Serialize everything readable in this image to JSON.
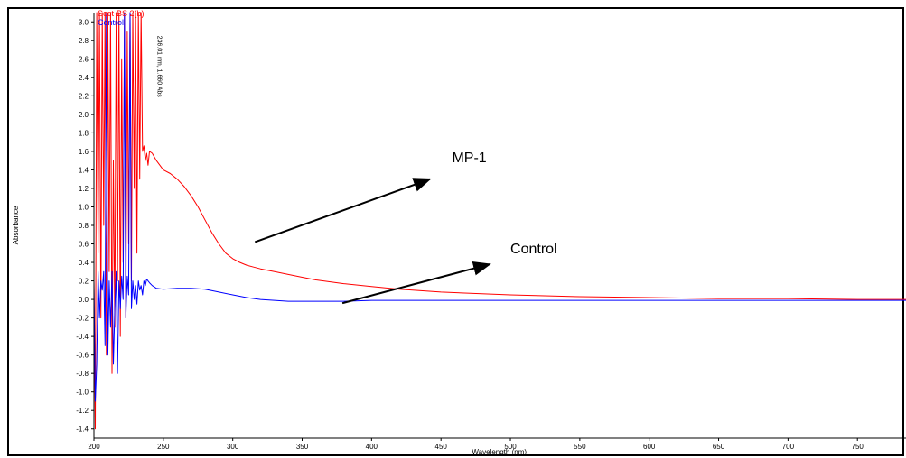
{
  "chart_data": {
    "type": "line",
    "title": "",
    "xlabel": "Wavelength (nm)",
    "ylabel": "Absorbance",
    "xlim": [
      200,
      785
    ],
    "ylim": [
      -1.5,
      3.1
    ],
    "x_ticks": [
      200,
      250,
      300,
      350,
      400,
      450,
      500,
      550,
      600,
      650,
      700,
      750
    ],
    "y_ticks": [
      3.0,
      2.8,
      2.6,
      2.4,
      2.2,
      2.0,
      1.8,
      1.6,
      1.4,
      1.2,
      1.0,
      0.8,
      0.6,
      0.4,
      0.2,
      0.0,
      -0.2,
      -0.4,
      -0.6,
      -0.8,
      -1.0,
      -1.2,
      -1.4
    ],
    "grid": false,
    "legend_position": "top-left",
    "legend": [
      {
        "label": "Sect-BS 2(b)",
        "color": "#ff0000"
      },
      {
        "label": "Control",
        "color": "#0000ff"
      }
    ],
    "peak_label": "236.01 nm, 1.660 Abs",
    "annotations": [
      {
        "text": "MP-1"
      },
      {
        "text": "Control"
      }
    ],
    "series": [
      {
        "name": "Sect-BS 2(b)",
        "color": "#ff0000",
        "x": [
          200,
          201,
          202,
          203,
          204,
          205,
          206,
          207,
          208,
          209,
          210,
          211,
          212,
          213,
          214,
          215,
          216,
          217,
          218,
          219,
          220,
          221,
          222,
          223,
          224,
          225,
          226,
          227,
          228,
          229,
          230,
          231,
          232,
          233,
          234,
          235,
          236,
          237,
          238,
          239,
          240,
          242,
          245,
          250,
          255,
          260,
          265,
          270,
          275,
          280,
          285,
          290,
          295,
          300,
          305,
          310,
          315,
          320,
          330,
          340,
          350,
          360,
          380,
          400,
          420,
          450,
          500,
          550,
          600,
          650,
          700,
          750,
          785
        ],
        "y": [
          0.2,
          -1.4,
          3.1,
          0.5,
          3.1,
          -0.2,
          3.1,
          0.8,
          3.1,
          -0.6,
          3.1,
          0.3,
          3.1,
          -0.8,
          1.5,
          -0.3,
          3.1,
          0.2,
          3.1,
          -0.4,
          2.6,
          0.4,
          3.1,
          -0.2,
          2.9,
          0.6,
          3.1,
          0.2,
          3.1,
          1.2,
          3.1,
          0.5,
          3.1,
          1.3,
          3.1,
          1.6,
          1.66,
          1.5,
          1.58,
          1.45,
          1.6,
          1.58,
          1.5,
          1.4,
          1.36,
          1.3,
          1.22,
          1.12,
          1.0,
          0.86,
          0.72,
          0.6,
          0.5,
          0.44,
          0.4,
          0.37,
          0.35,
          0.33,
          0.3,
          0.27,
          0.24,
          0.21,
          0.17,
          0.14,
          0.11,
          0.08,
          0.05,
          0.03,
          0.02,
          0.01,
          0.01,
          0.0,
          0.0
        ]
      },
      {
        "name": "Control",
        "color": "#0000ff",
        "x": [
          200,
          201,
          202,
          203,
          204,
          205,
          206,
          207,
          208,
          209,
          210,
          211,
          212,
          213,
          214,
          215,
          216,
          217,
          218,
          219,
          220,
          221,
          222,
          223,
          224,
          225,
          226,
          227,
          228,
          229,
          230,
          231,
          232,
          233,
          234,
          235,
          236,
          237,
          238,
          239,
          240,
          242,
          245,
          250,
          260,
          270,
          280,
          290,
          300,
          310,
          320,
          330,
          340,
          360,
          380,
          400,
          450,
          500,
          550,
          600,
          650,
          700,
          750,
          785
        ],
        "y": [
          0.2,
          -1.1,
          -0.7,
          0.3,
          -0.2,
          0.2,
          0.1,
          0.3,
          -0.5,
          3.1,
          -0.6,
          0.2,
          -0.3,
          0.3,
          -0.7,
          -0.1,
          0.3,
          -0.8,
          0.2,
          -0.1,
          0.25,
          0.0,
          3.1,
          -0.2,
          0.25,
          0.05,
          3.1,
          -0.1,
          0.2,
          0.0,
          0.15,
          -0.05,
          0.2,
          0.1,
          0.15,
          0.05,
          0.2,
          0.15,
          0.22,
          0.2,
          0.18,
          0.15,
          0.12,
          0.11,
          0.12,
          0.12,
          0.11,
          0.08,
          0.05,
          0.02,
          0.0,
          -0.01,
          -0.02,
          -0.02,
          -0.02,
          -0.01,
          -0.01,
          -0.01,
          -0.01,
          -0.01,
          -0.01,
          -0.01,
          -0.01,
          -0.01
        ]
      }
    ]
  }
}
